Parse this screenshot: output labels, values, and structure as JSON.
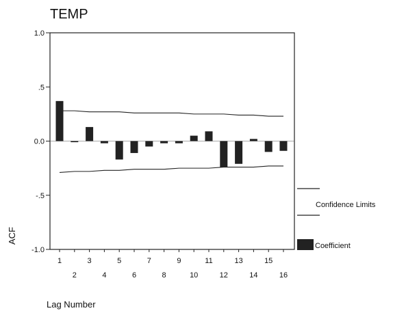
{
  "chart_data": {
    "type": "bar",
    "title": "TEMP",
    "xlabel": "Lag Number",
    "ylabel": "ACF",
    "ylim": [
      -1.0,
      1.0
    ],
    "yticks": [
      "1.0",
      ".5",
      "0.0",
      "-.5",
      "-1.0"
    ],
    "categories": [
      "1",
      "2",
      "3",
      "4",
      "5",
      "6",
      "7",
      "8",
      "9",
      "10",
      "11",
      "12",
      "13",
      "14",
      "15",
      "16"
    ],
    "series": [
      {
        "name": "Coefficient",
        "values": [
          0.37,
          -0.01,
          0.13,
          -0.02,
          -0.17,
          -0.11,
          -0.05,
          -0.02,
          -0.02,
          0.05,
          0.09,
          -0.24,
          -0.21,
          0.02,
          -0.1,
          -0.09
        ]
      },
      {
        "name": "Confidence Limits",
        "upper": [
          0.28,
          0.28,
          0.27,
          0.27,
          0.27,
          0.26,
          0.26,
          0.26,
          0.26,
          0.25,
          0.25,
          0.25,
          0.24,
          0.24,
          0.23,
          0.23
        ],
        "lower": [
          -0.29,
          -0.28,
          -0.28,
          -0.27,
          -0.27,
          -0.26,
          -0.26,
          -0.26,
          -0.25,
          -0.25,
          -0.25,
          -0.24,
          -0.24,
          -0.24,
          -0.23,
          -0.23
        ]
      }
    ],
    "legend": [
      "Confidence Limits",
      "Coefficient"
    ],
    "legend_position": "right",
    "grid": false
  }
}
